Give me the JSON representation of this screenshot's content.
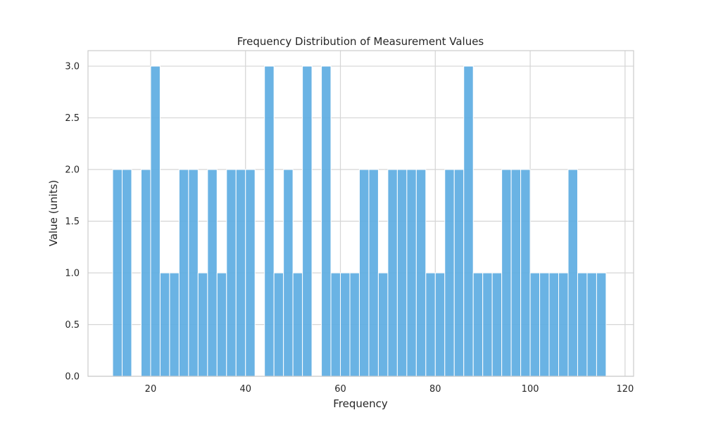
{
  "chart_data": {
    "type": "bar",
    "title": "Frequency Distribution of Measurement Values",
    "xlabel": "Frequency",
    "ylabel": "Value (units)",
    "xlim": [
      6.8,
      121.8
    ],
    "ylim": [
      0,
      3.15
    ],
    "xticks": [
      20,
      40,
      60,
      80,
      100,
      120
    ],
    "xtick_labels": [
      "20",
      "40",
      "60",
      "80",
      "100",
      "120"
    ],
    "yticks": [
      0,
      0.5,
      1,
      1.5,
      2,
      2.5,
      3
    ],
    "ytick_labels": [
      "0.0",
      "0.5",
      "1.0",
      "1.5",
      "2.0",
      "2.5",
      "3.0"
    ],
    "grid": true,
    "bar_color": "#5dade2",
    "bin_start": 12.0,
    "bin_width": 2.0,
    "values": [
      2,
      2,
      0,
      2,
      3,
      1,
      1,
      2,
      2,
      1,
      2,
      1,
      2,
      2,
      2,
      0,
      3,
      1,
      2,
      1,
      3,
      0,
      3,
      1,
      1,
      1,
      2,
      2,
      1,
      2,
      2,
      2,
      2,
      1,
      1,
      2,
      2,
      3,
      1,
      1,
      1,
      2,
      2,
      2,
      1,
      1,
      1,
      1,
      2,
      1,
      1,
      1
    ]
  }
}
